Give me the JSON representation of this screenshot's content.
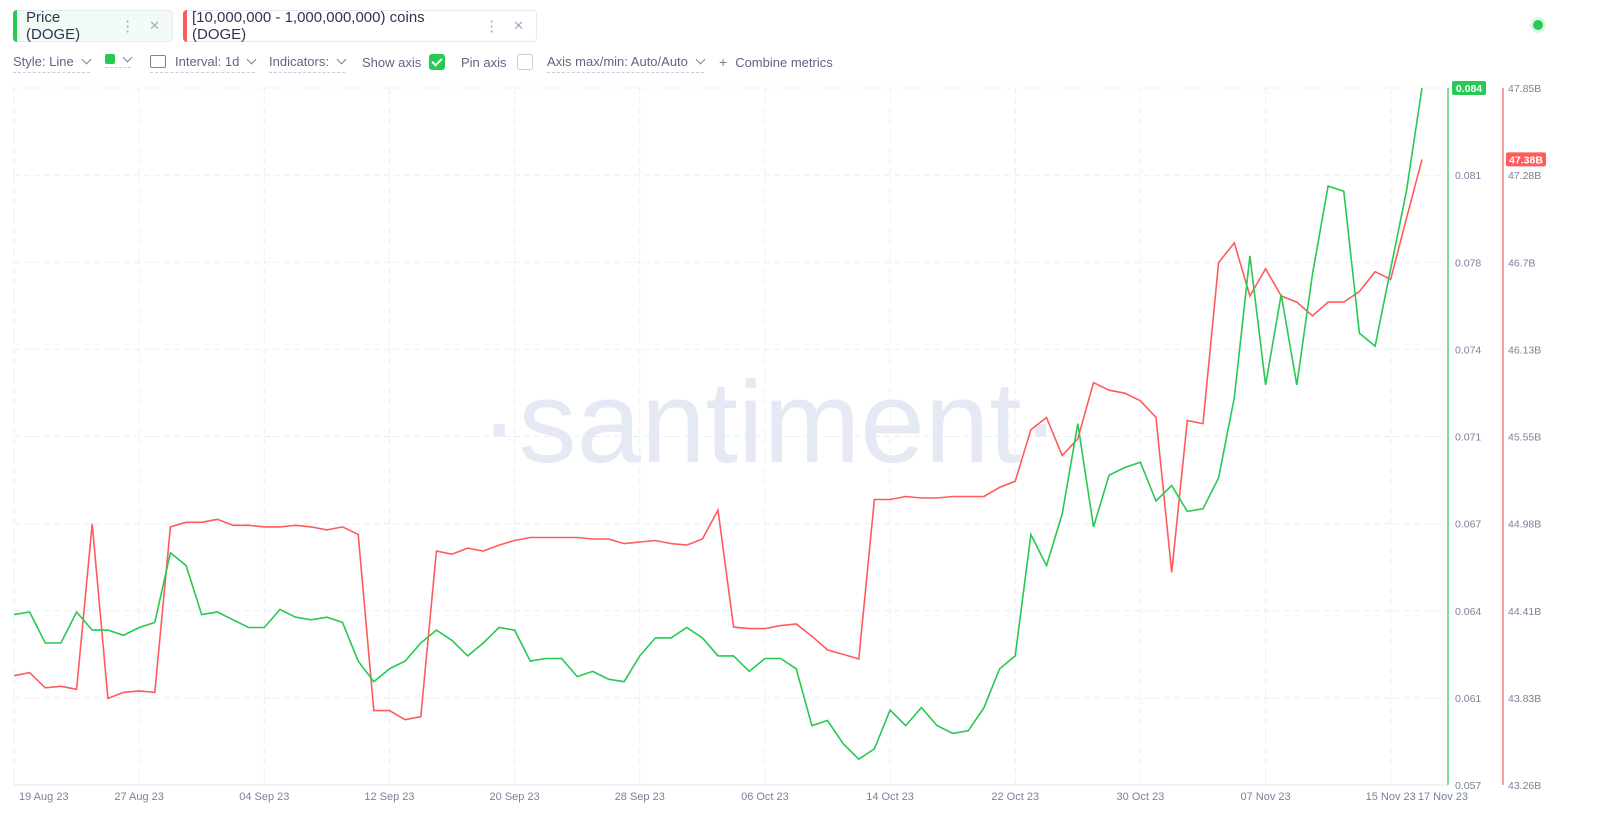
{
  "metrics": [
    {
      "label": "Price (DOGE)",
      "color": "#26c953"
    },
    {
      "label": "[10,000,000 - 1,000,000,000) coins (DOGE)",
      "color": "#ff5b5b"
    }
  ],
  "toolbar": {
    "style": "Style: Line",
    "interval": "Interval: 1d",
    "indicators": "Indicators:",
    "show_axis": "Show axis",
    "show_axis_checked": true,
    "pin_axis": "Pin axis",
    "pin_axis_checked": false,
    "axis_maxmin": "Axis max/min: Auto/Auto",
    "combine": "Combine metrics"
  },
  "watermark": "·santiment·",
  "chart_data": {
    "type": "line",
    "x_start": "19 Aug 23",
    "x_end": "17 Nov 23",
    "x_tick_labels": [
      "19 Aug 23",
      "27 Aug 23",
      "04 Sep 23",
      "12 Sep 23",
      "20 Sep 23",
      "28 Sep 23",
      "06 Oct 23",
      "14 Oct 23",
      "22 Oct 23",
      "30 Oct 23",
      "07 Nov 23",
      "15 Nov 23",
      "17 Nov 23"
    ],
    "x_tick_days": [
      0,
      8,
      16,
      24,
      32,
      40,
      48,
      56,
      64,
      72,
      80,
      88,
      90
    ],
    "y_left": {
      "min": 0.057,
      "max": 0.084,
      "ticks": [
        "0.084",
        "0.081",
        "0.078",
        "0.074",
        "0.071",
        "0.067",
        "0.064",
        "0.061",
        "0.057"
      ]
    },
    "y_right": {
      "min": 43.26,
      "max": 47.85,
      "ticks": [
        "47.85B",
        "47.28B",
        "46.7B",
        "46.13B",
        "45.55B",
        "44.98B",
        "44.41B",
        "43.83B",
        "43.26B"
      ]
    },
    "series": [
      {
        "name": "Price (DOGE)",
        "color": "#26c953",
        "axis": "left",
        "last_label": "0.084",
        "values": [
          0.0636,
          0.0637,
          0.0625,
          0.0625,
          0.0637,
          0.063,
          0.063,
          0.0628,
          0.0631,
          0.0633,
          0.066,
          0.0655,
          0.0636,
          0.0637,
          0.0634,
          0.0631,
          0.0631,
          0.0638,
          0.0635,
          0.0634,
          0.0635,
          0.0633,
          0.0618,
          0.061,
          0.0615,
          0.0618,
          0.0625,
          0.063,
          0.0626,
          0.062,
          0.0625,
          0.0631,
          0.063,
          0.0618,
          0.0619,
          0.0619,
          0.0612,
          0.0614,
          0.0611,
          0.061,
          0.062,
          0.0627,
          0.0627,
          0.0631,
          0.0627,
          0.062,
          0.062,
          0.0614,
          0.0619,
          0.0619,
          0.0615,
          0.0593,
          0.0595,
          0.0586,
          0.058,
          0.0584,
          0.0599,
          0.0593,
          0.06,
          0.0593,
          0.059,
          0.0591,
          0.06,
          0.0615,
          0.062,
          0.0667,
          0.0655,
          0.0675,
          0.071,
          0.067,
          0.069,
          0.0693,
          0.0695,
          0.068,
          0.0686,
          0.0676,
          0.0677,
          0.0689,
          0.072,
          0.0775,
          0.0725,
          0.076,
          0.0725,
          0.0768,
          0.0802,
          0.08,
          0.0745,
          0.074,
          0.077,
          0.08,
          0.084
        ]
      },
      {
        "name": "[10,000,000 - 1,000,000,000) coins (DOGE)",
        "color": "#ff5b5b",
        "axis": "right",
        "last_label": "47.38B",
        "values": [
          43.98,
          44.0,
          43.9,
          43.91,
          43.89,
          44.98,
          43.83,
          43.87,
          43.88,
          43.87,
          44.96,
          44.99,
          44.99,
          45.01,
          44.97,
          44.97,
          44.96,
          44.96,
          44.97,
          44.96,
          44.94,
          44.96,
          44.91,
          43.75,
          43.75,
          43.69,
          43.71,
          44.8,
          44.78,
          44.82,
          44.8,
          44.84,
          44.87,
          44.89,
          44.89,
          44.89,
          44.89,
          44.88,
          44.88,
          44.85,
          44.86,
          44.87,
          44.85,
          44.84,
          44.88,
          45.07,
          44.3,
          44.29,
          44.29,
          44.31,
          44.32,
          44.24,
          44.15,
          44.12,
          44.09,
          45.14,
          45.14,
          45.16,
          45.15,
          45.15,
          45.16,
          45.16,
          45.16,
          45.22,
          45.26,
          45.6,
          45.68,
          45.43,
          45.54,
          45.91,
          45.86,
          45.84,
          45.79,
          45.68,
          44.66,
          45.66,
          45.64,
          46.7,
          46.83,
          46.48,
          46.66,
          46.48,
          46.44,
          46.35,
          46.44,
          46.44,
          46.51,
          46.64,
          46.59,
          46.99,
          47.38
        ]
      }
    ],
    "grid": true,
    "legend": "top-left tabs"
  }
}
